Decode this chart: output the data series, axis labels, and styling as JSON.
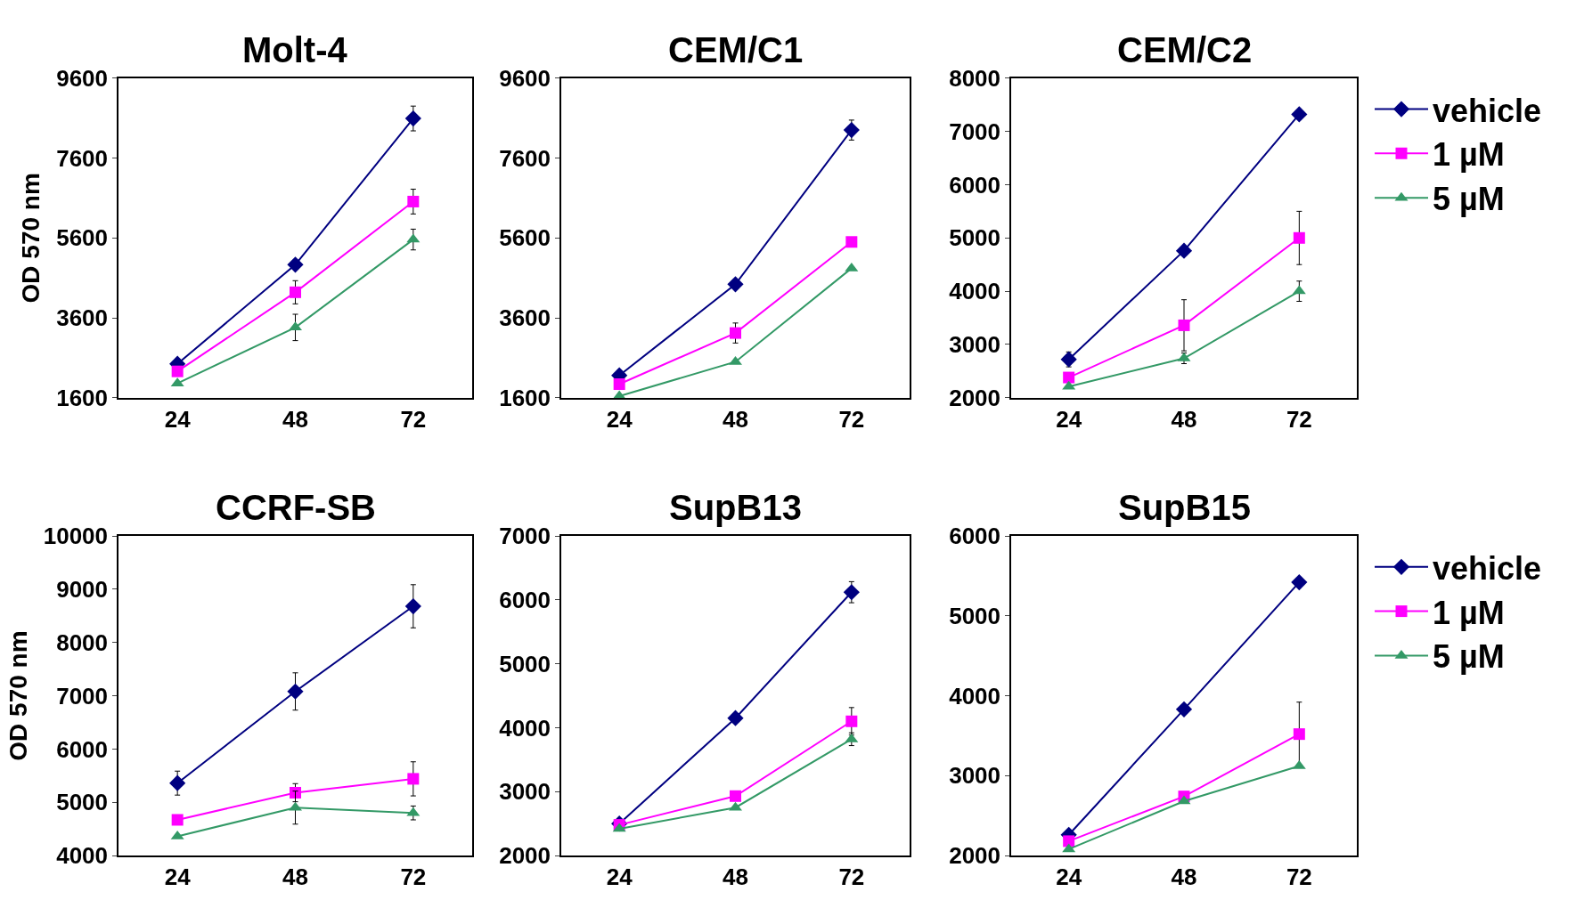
{
  "chart_data": [
    {
      "type": "line",
      "title": "Molt-4",
      "ylabel": "OD 570 nm",
      "categories": [
        "24",
        "48",
        "72"
      ],
      "ylim": [
        1600,
        9600
      ],
      "yticks": [
        1600,
        3600,
        5600,
        7600,
        9600
      ],
      "legend": false,
      "line_style": "solid",
      "series": [
        {
          "color": "#000080",
          "marker": "diamond",
          "values": [
            2450,
            4930,
            8590
          ],
          "errors": [
            null,
            null,
            310
          ]
        },
        {
          "color": "#ff00ff",
          "marker": "square",
          "values": [
            2260,
            4240,
            6510
          ],
          "errors": [
            null,
            290,
            310
          ]
        },
        {
          "color": "#339966",
          "marker": "triangle",
          "values": [
            1960,
            3360,
            5560
          ],
          "errors": [
            null,
            330,
            260
          ]
        }
      ]
    },
    {
      "type": "line",
      "title": "CEM/C1",
      "categories": [
        "24",
        "48",
        "72"
      ],
      "ylim": [
        1600,
        9600
      ],
      "yticks": [
        1600,
        3600,
        5600,
        7600,
        9600
      ],
      "legend": false,
      "line_style": "solid",
      "series": [
        {
          "color": "#000080",
          "marker": "diamond",
          "values": [
            2160,
            4440,
            8300
          ],
          "errors": [
            null,
            null,
            250
          ]
        },
        {
          "color": "#ff00ff",
          "marker": "square",
          "values": [
            1940,
            3220,
            5500
          ],
          "errors": [
            null,
            250,
            null
          ]
        },
        {
          "color": "#339966",
          "marker": "triangle",
          "values": [
            1640,
            2500,
            4840
          ],
          "errors": [
            null,
            null,
            null
          ]
        }
      ]
    },
    {
      "type": "line",
      "title": "CEM/C2",
      "categories": [
        "24",
        "48",
        "72"
      ],
      "ylim": [
        2000,
        8000
      ],
      "yticks": [
        2000,
        3000,
        4000,
        5000,
        6000,
        7000,
        8000
      ],
      "legend": "right",
      "line_style": "solid",
      "series": [
        {
          "name": "vehicle",
          "color": "#000080",
          "marker": "diamond",
          "values": [
            2720,
            4760,
            7320
          ],
          "errors": [
            140,
            null,
            null
          ]
        },
        {
          "name": "1 µM",
          "color": "#ff00ff",
          "marker": "square",
          "values": [
            2380,
            3360,
            5000
          ],
          "errors": [
            null,
            480,
            500
          ]
        },
        {
          "name": "5 µM",
          "color": "#339966",
          "marker": "triangle",
          "values": [
            2210,
            2740,
            4000
          ],
          "errors": [
            null,
            100,
            190
          ]
        }
      ]
    },
    {
      "type": "line",
      "title": "CCRF-SB",
      "ylabel": "OD 570 nm",
      "categories": [
        "24",
        "48",
        "72"
      ],
      "ylim": [
        4000,
        10000
      ],
      "yticks": [
        4000,
        5000,
        6000,
        7000,
        8000,
        9000,
        10000
      ],
      "legend": false,
      "line_style": "solid",
      "series": [
        {
          "color": "#000080",
          "marker": "diamond",
          "values": [
            5360,
            7080,
            8680
          ],
          "errors": [
            225,
            350,
            405
          ]
        },
        {
          "color": "#ff00ff",
          "marker": "square",
          "values": [
            4670,
            5180,
            5440
          ],
          "errors": [
            null,
            170,
            320
          ]
        },
        {
          "color": "#339966",
          "marker": "triangle",
          "values": [
            4360,
            4900,
            4800
          ],
          "errors": [
            null,
            310,
            130
          ]
        }
      ]
    },
    {
      "type": "line",
      "title": "SupB13",
      "categories": [
        "24",
        "48",
        "72"
      ],
      "ylim": [
        2000,
        7000
      ],
      "yticks": [
        2000,
        3000,
        4000,
        5000,
        6000,
        7000
      ],
      "legend": false,
      "line_style": "solid",
      "series": [
        {
          "color": "#000080",
          "marker": "diamond",
          "values": [
            2500,
            4150,
            6120
          ],
          "errors": [
            null,
            null,
            165
          ]
        },
        {
          "color": "#ff00ff",
          "marker": "square",
          "values": [
            2480,
            2930,
            4100
          ],
          "errors": [
            null,
            null,
            215
          ]
        },
        {
          "color": "#339966",
          "marker": "triangle",
          "values": [
            2420,
            2750,
            3820
          ],
          "errors": [
            null,
            null,
            100
          ]
        }
      ]
    },
    {
      "type": "line",
      "title": "SupB15",
      "categories": [
        "24",
        "48",
        "72"
      ],
      "ylim": [
        2000,
        6000
      ],
      "yticks": [
        2000,
        3000,
        4000,
        5000,
        6000
      ],
      "legend": "right",
      "line_style": "solid",
      "series": [
        {
          "name": "vehicle",
          "color": "#000080",
          "marker": "diamond",
          "values": [
            2260,
            3830,
            5420
          ],
          "errors": [
            null,
            null,
            null
          ]
        },
        {
          "name": "1 µM",
          "color": "#ff00ff",
          "marker": "square",
          "values": [
            2180,
            2740,
            3520
          ],
          "errors": [
            null,
            null,
            400
          ]
        },
        {
          "name": "5 µM",
          "color": "#339966",
          "marker": "triangle",
          "values": [
            2080,
            2680,
            3120
          ],
          "errors": [
            null,
            null,
            null
          ]
        }
      ]
    }
  ]
}
